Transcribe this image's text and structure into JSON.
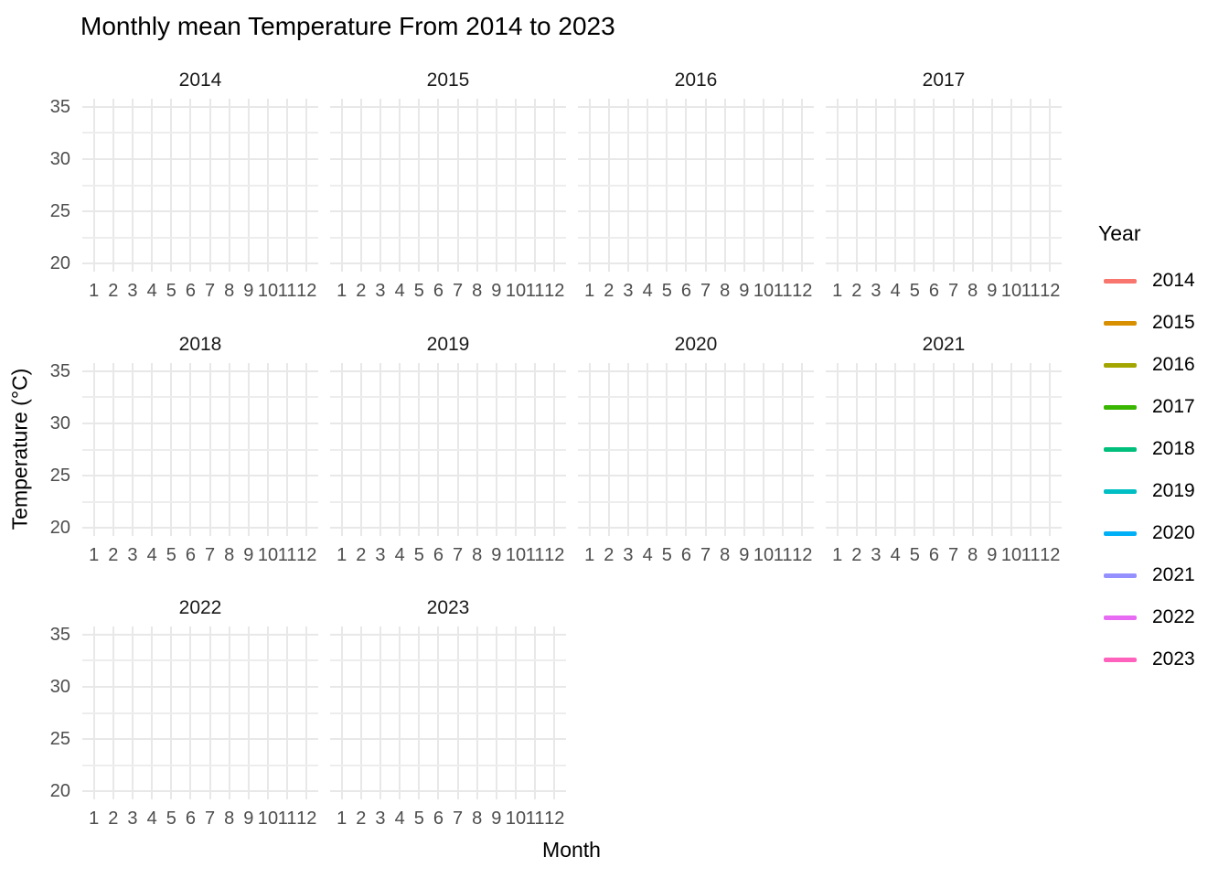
{
  "title": "Monthly mean Temperature From 2014 to 2023",
  "chart_data": {
    "type": "line",
    "faceted": true,
    "facet_variable": "Year",
    "facets": [
      "2014",
      "2015",
      "2016",
      "2017",
      "2018",
      "2019",
      "2020",
      "2021",
      "2022",
      "2023"
    ],
    "facet_grid": {
      "columns": 4,
      "rows": 3
    },
    "x": {
      "label": "Month",
      "ticks": [
        "1",
        "2",
        "3",
        "4",
        "5",
        "6",
        "7",
        "8",
        "9",
        "10",
        "11",
        "12"
      ],
      "type": "discrete"
    },
    "y": {
      "label": "Temperature (°C)",
      "tick_values": [
        35,
        30,
        25,
        20
      ],
      "minor_grid_values": [
        32.5,
        27.5,
        22.5
      ],
      "range_shown": [
        20,
        35
      ]
    },
    "grid": {
      "show": true,
      "major_color": "#e8e8e8",
      "minor_color": "#ededed",
      "background": "#ffffff"
    },
    "panels_empty_note": "no data lines or points are visible inside any facet panel",
    "series": [
      {
        "name": "2014",
        "color": "#F8766D",
        "values": []
      },
      {
        "name": "2015",
        "color": "#D89000",
        "values": []
      },
      {
        "name": "2016",
        "color": "#A3A500",
        "values": []
      },
      {
        "name": "2017",
        "color": "#39B600",
        "values": []
      },
      {
        "name": "2018",
        "color": "#00BF7D",
        "values": []
      },
      {
        "name": "2019",
        "color": "#00BFC4",
        "values": []
      },
      {
        "name": "2020",
        "color": "#00B0F6",
        "values": []
      },
      {
        "name": "2021",
        "color": "#9590FF",
        "values": []
      },
      {
        "name": "2022",
        "color": "#E76BF3",
        "values": []
      },
      {
        "name": "2023",
        "color": "#FF62BC",
        "values": []
      }
    ],
    "legend": {
      "title": "Year",
      "position": "right",
      "entries": [
        {
          "label": "2014",
          "color": "#F8766D"
        },
        {
          "label": "2015",
          "color": "#D89000"
        },
        {
          "label": "2016",
          "color": "#A3A500"
        },
        {
          "label": "2017",
          "color": "#39B600"
        },
        {
          "label": "2018",
          "color": "#00BF7D"
        },
        {
          "label": "2019",
          "color": "#00BFC4"
        },
        {
          "label": "2020",
          "color": "#00B0F6"
        },
        {
          "label": "2021",
          "color": "#9590FF"
        },
        {
          "label": "2022",
          "color": "#E76BF3"
        },
        {
          "label": "2023",
          "color": "#FF62BC"
        }
      ]
    }
  }
}
